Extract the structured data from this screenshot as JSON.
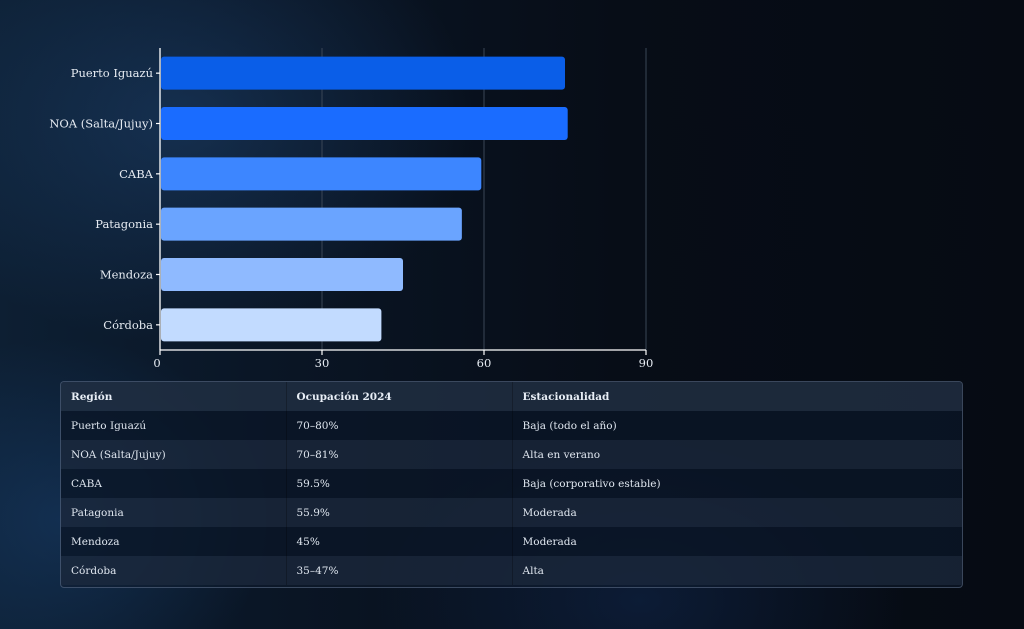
{
  "chart_data": {
    "type": "bar",
    "orientation": "horizontal",
    "title": "",
    "xlabel": "",
    "ylabel": "",
    "categories": [
      "Puerto Iguazú",
      "NOA (Salta/Jujuy)",
      "CABA",
      "Patagonia",
      "Mendoza",
      "Córdoba"
    ],
    "values": [
      75,
      75.5,
      59.5,
      55.9,
      45,
      41
    ],
    "xlim": [
      0,
      90
    ],
    "xticks": [
      0,
      30,
      60,
      90
    ],
    "grid": true,
    "bar_colors": [
      "#0a5ee8",
      "#1a6cff",
      "#3d86ff",
      "#6aa4ff",
      "#8fbaff",
      "#c2dbff"
    ]
  },
  "table": {
    "headers": [
      "Región",
      "Ocupación 2024",
      "Estacionalidad"
    ],
    "rows": [
      [
        "Puerto Iguazú",
        "70–80%",
        "Baja (todo el año)"
      ],
      [
        "NOA (Salta/Jujuy)",
        "70–81%",
        "Alta en verano"
      ],
      [
        "CABA",
        "59.5%",
        "Baja (corporativo estable)"
      ],
      [
        "Patagonia",
        "55.9%",
        "Moderada"
      ],
      [
        "Mendoza",
        "45%",
        "Moderada"
      ],
      [
        "Córdoba",
        "35–47%",
        "Alta"
      ]
    ]
  }
}
